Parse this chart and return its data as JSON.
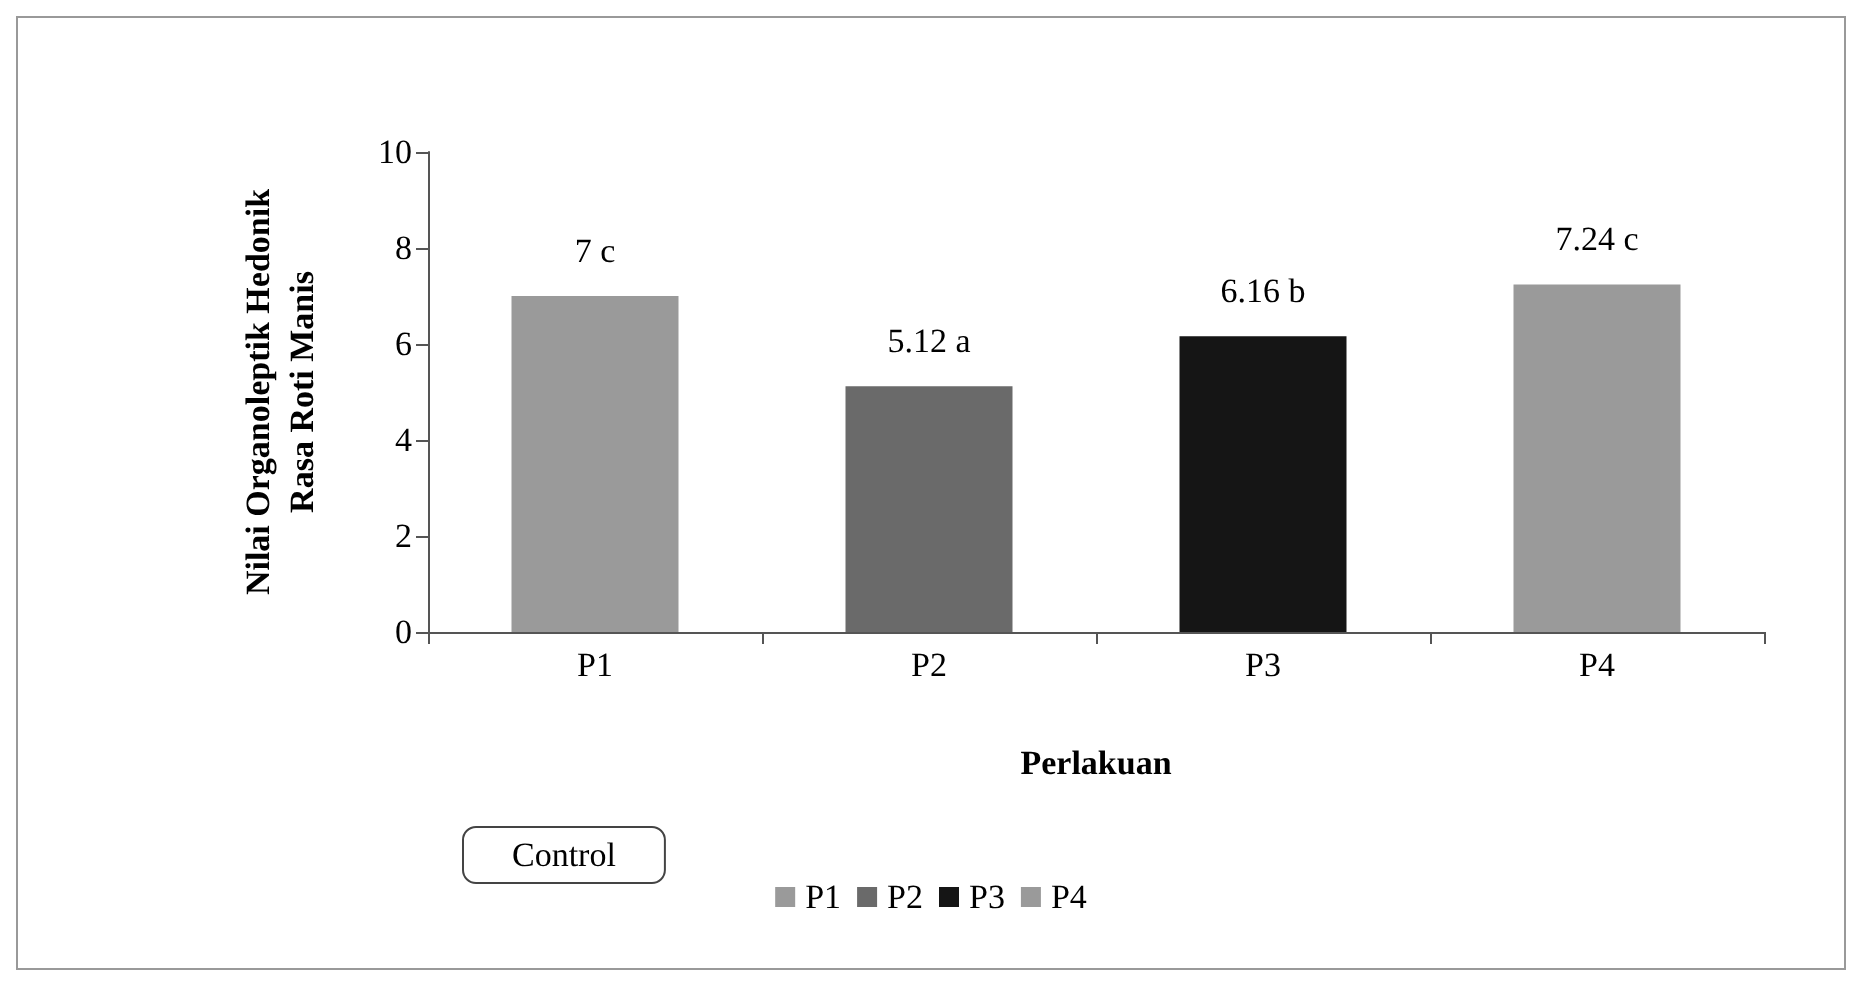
{
  "chart_data": {
    "type": "bar",
    "categories": [
      "P1",
      "P2",
      "P3",
      "P4"
    ],
    "series": [
      {
        "name": "P1",
        "color": "#9a9a9a",
        "values": [
          7,
          null,
          null,
          null
        ],
        "value_labels": [
          "7 c",
          null,
          null,
          null
        ]
      },
      {
        "name": "P2",
        "color": "#6a6a6a",
        "values": [
          null,
          5.12,
          null,
          null
        ],
        "value_labels": [
          null,
          "5.12 a",
          null,
          null
        ]
      },
      {
        "name": "P3",
        "color": "#151515",
        "values": [
          null,
          null,
          6.16,
          null
        ],
        "value_labels": [
          null,
          null,
          "6.16 b",
          null
        ]
      },
      {
        "name": "P4",
        "color": "#9a9a9a",
        "values": [
          null,
          null,
          null,
          7.24
        ],
        "value_labels": [
          null,
          null,
          null,
          "7.24 c"
        ]
      }
    ],
    "xlabel": "Perlakuan",
    "ylabel": "Nilai Organoleptik Hedonik\nRasa Roti Manis",
    "annotations": [
      "Control"
    ],
    "ylim": [
      0,
      10
    ],
    "yticks": [
      0,
      2,
      4,
      6,
      8,
      10
    ],
    "grid": false,
    "legend": "bottom"
  }
}
